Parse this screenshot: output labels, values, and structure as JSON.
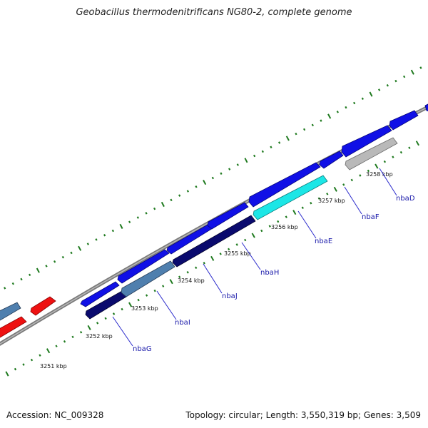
{
  "title": "Geobacillus thermodenitrificans NG80-2, complete genome",
  "accession": "Accession: NC_009328",
  "summary": "Topology: circular; Length: 3,550,319 bp; Genes: 3,509",
  "colors": {
    "backbone": "#808080",
    "ticks": "#1f7a1f",
    "gene_blue": "#1010e6",
    "gene_navy": "#0a0a6e",
    "gene_steel": "#4f7fae",
    "gene_cyan": "#1ce6e6",
    "gene_gray": "#b9b9b9",
    "gene_red": "#ee1111",
    "label": "#1a1aaa"
  },
  "axis": {
    "ticks": [
      {
        "label": "3251 kbp",
        "kbp": 3251
      },
      {
        "label": "3252 kbp",
        "kbp": 3252
      },
      {
        "label": "3253 kbp",
        "kbp": 3253
      },
      {
        "label": "3254 kbp",
        "kbp": 3254
      },
      {
        "label": "3255 kbp",
        "kbp": 3255
      },
      {
        "label": "3256 kbp",
        "kbp": 3256
      },
      {
        "label": "3257 kbp",
        "kbp": 3257
      },
      {
        "label": "3258 kbp",
        "kbp": 3258
      }
    ]
  },
  "genes": [
    {
      "label": "nbaG"
    },
    {
      "label": "nbaI"
    },
    {
      "label": "nbaJ"
    },
    {
      "label": "nbaH"
    },
    {
      "label": "nbaE"
    },
    {
      "label": "nbaF"
    },
    {
      "label": "nbaD"
    }
  ]
}
